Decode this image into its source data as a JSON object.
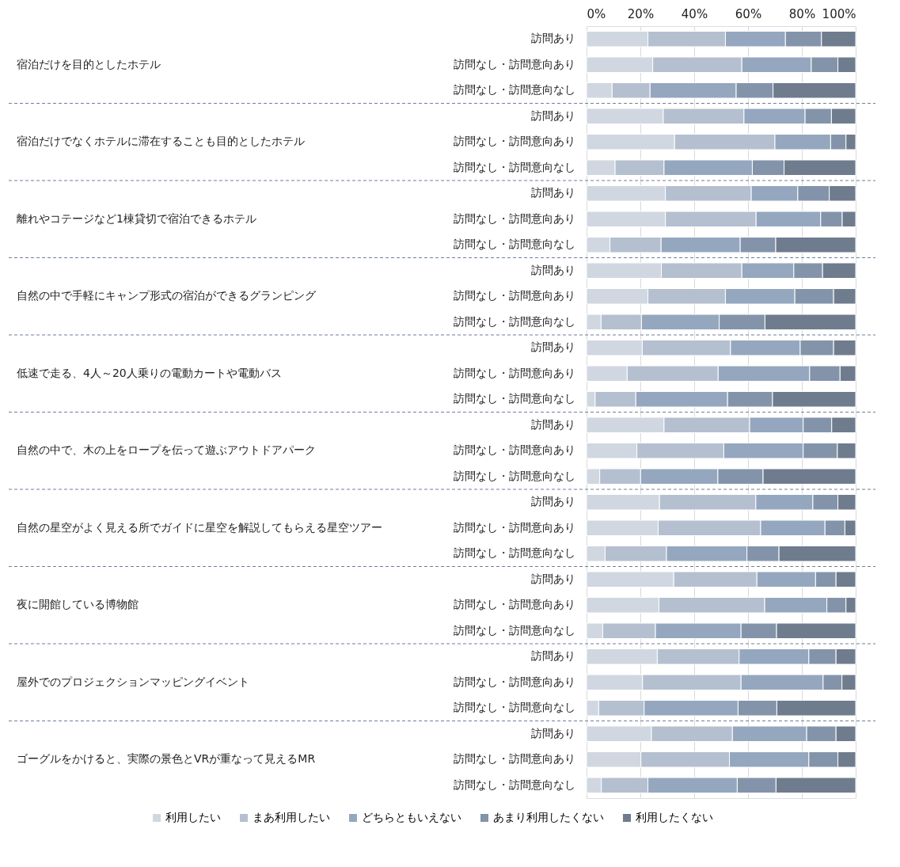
{
  "chart_data": {
    "type": "bar",
    "orientation": "horizontal",
    "stacked": true,
    "categories": [
      "訪問あり",
      "訪問なし・訪問意向あり",
      "訪問なし・訪問意向なし",
      "訪問あり",
      "訪問なし・訪問意向あり",
      "訪問なし・訪問意向なし",
      "訪問あり",
      "訪問なし・訪問意向あり",
      "訪問なし・訪問意向なし",
      "訪問あり",
      "訪問なし・訪問意向あり",
      "訪問なし・訪問意向なし",
      "訪問あり",
      "訪問なし・訪問意向あり",
      "訪問なし・訪問意向なし",
      "訪問あり",
      "訪問なし・訪問意向あり",
      "訪問なし・訪問意向なし",
      "訪問あり",
      "訪問なし・訪問意向あり",
      "訪問なし・訪問意向なし",
      "訪問あり",
      "訪問なし・訪問意向あり",
      "訪問なし・訪問意向なし",
      "訪問あり",
      "訪問なし・訪問意向あり",
      "訪問なし・訪問意向なし",
      "訪問あり",
      "訪問なし・訪問意向あり",
      "訪問なし・訪問意向なし"
    ],
    "annotations": [
      "宿泊だけを目的としたホテル",
      "宿泊だけでなくホテルに滞在することも目的としたホテル",
      "離れやコテージなど1棟貸切で宿泊できるホテル",
      "自然の中で手軽にキャンプ形式の宿泊ができるグランピング",
      "低速で走る、4人～20人乗りの電動カートや電動バス",
      "自然の中で、木の上をロープを伝って遊ぶアウトドアパーク",
      "自然の星空がよく見える所でガイドに星空を解説してもらえる星空ツアー",
      "夜に開館している博物館",
      "屋外でのプロジェクションマッピングイベント",
      "ゴーグルをかけると、実際の景色とVRが重なって見えるMR"
    ],
    "series": [
      {
        "name": "利用したい",
        "color": "#d0d7e1",
        "values": [
          22.8,
          24.6,
          9.5,
          28.5,
          32.7,
          10.6,
          29.3,
          29.3,
          8.7,
          27.8,
          22.8,
          5.4,
          20.7,
          15.1,
          3.2,
          28.8,
          18.7,
          4.9,
          27.1,
          26.6,
          6.9,
          32.4,
          26.9,
          6.0,
          26.3,
          20.8,
          4.5,
          24.1,
          20.2,
          5.5
        ]
      },
      {
        "name": "まあ利用したい",
        "color": "#b4c0d0",
        "values": [
          28.8,
          33.1,
          14.1,
          30.0,
          37.3,
          18.2,
          31.9,
          33.7,
          19.0,
          29.9,
          28.8,
          15.0,
          32.8,
          33.8,
          15.1,
          31.8,
          32.3,
          15.2,
          35.8,
          38.1,
          22.8,
          30.9,
          39.3,
          19.6,
          30.4,
          36.6,
          16.9,
          30.1,
          32.9,
          17.3
        ]
      },
      {
        "name": "どちらともいえない",
        "color": "#95a7bf",
        "values": [
          22.3,
          25.8,
          32.0,
          22.7,
          20.7,
          32.8,
          17.3,
          24.0,
          29.4,
          19.3,
          25.8,
          28.9,
          25.9,
          34.0,
          34.1,
          19.9,
          29.5,
          28.7,
          21.2,
          23.9,
          29.9,
          21.8,
          23.1,
          31.8,
          25.9,
          30.5,
          34.9,
          27.6,
          29.5,
          33.2
        ]
      },
      {
        "name": "あまり利用したくない",
        "color": "#8394aa",
        "values": [
          13.4,
          9.9,
          13.7,
          9.8,
          5.7,
          11.8,
          11.7,
          8.0,
          13.2,
          10.7,
          14.4,
          17.0,
          12.4,
          11.3,
          16.7,
          10.6,
          12.7,
          16.8,
          9.3,
          7.4,
          11.9,
          7.6,
          7.1,
          13.2,
          10.1,
          7.0,
          14.4,
          10.9,
          10.8,
          14.4
        ]
      },
      {
        "name": "利用したくない",
        "color": "#6f7c8e",
        "values": [
          12.7,
          6.6,
          30.7,
          9.0,
          3.6,
          26.6,
          9.8,
          5.0,
          29.7,
          12.3,
          8.2,
          33.7,
          8.2,
          5.8,
          30.9,
          8.9,
          6.8,
          34.4,
          6.6,
          4.0,
          28.5,
          7.3,
          3.6,
          29.4,
          7.3,
          5.1,
          29.3,
          7.3,
          6.6,
          29.6
        ]
      }
    ],
    "xlim": [
      0,
      100
    ],
    "xticks": [
      {
        "value": 0,
        "label": "0%"
      },
      {
        "value": 20,
        "label": "20%"
      },
      {
        "value": 40,
        "label": "40%"
      },
      {
        "value": 60,
        "label": "60%"
      },
      {
        "value": 80,
        "label": "80%"
      },
      {
        "value": 100,
        "label": "100%"
      }
    ],
    "grid": "x",
    "legend": "bottom"
  }
}
